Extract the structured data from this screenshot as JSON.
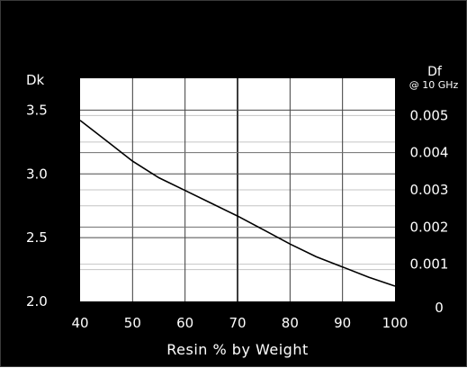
{
  "chart_data": {
    "type": "line",
    "title": "",
    "xlabel": "Resin % by Weight",
    "ylabel": "Dk",
    "y2label": "Df",
    "y2sublabel": "@ 10 GHz",
    "xlim": [
      40,
      100
    ],
    "ylim": [
      2.0,
      3.75
    ],
    "y2lim": [
      0,
      0.006
    ],
    "xticks": [
      "40",
      "50",
      "60",
      "70",
      "80",
      "90",
      "100"
    ],
    "yticks": [
      "2.0",
      "2.5",
      "3.0",
      "3.5"
    ],
    "y2ticks": [
      "0",
      "0.001",
      "0.002",
      "0.003",
      "0.004",
      "0.005"
    ],
    "grid": true,
    "colors": {
      "background": "#000000",
      "plot": "#ffffff",
      "line": "#000000",
      "text": "#ffffff"
    },
    "series": [
      {
        "x": [
          40,
          45,
          50,
          55,
          60,
          65,
          70,
          75,
          80,
          85,
          90,
          95,
          100
        ],
        "y": [
          3.42,
          3.26,
          3.1,
          2.97,
          2.87,
          2.77,
          2.67,
          2.56,
          2.45,
          2.35,
          2.27,
          2.19,
          2.12
        ]
      }
    ]
  }
}
